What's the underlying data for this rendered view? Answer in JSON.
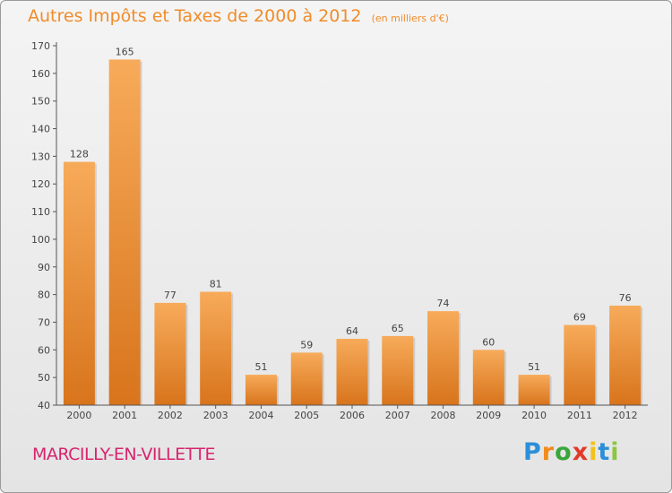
{
  "header": {
    "title": "Autres Impôts et Taxes de 2000 à 2012",
    "unit": "(en milliers d'€)"
  },
  "footer": {
    "commune": "MARCILLY-EN-VILLETTE",
    "brand_letters": [
      "P",
      "r",
      "o",
      "x",
      "i",
      "t",
      "i"
    ],
    "brand_colors": [
      "#2a8fd8",
      "#f28a1c",
      "#3aa63a",
      "#e23a2a",
      "#f2c21c",
      "#2a8fd8",
      "#8dc63f"
    ]
  },
  "colors": {
    "accent": "#f08c2a",
    "commune": "#d6246e",
    "bar_top": "#f7ab5a",
    "bar_bottom": "#d8741c"
  },
  "chart_data": {
    "type": "bar",
    "title": "Autres Impôts et Taxes de 2000 à 2012",
    "subtitle": "(en milliers d'€)",
    "xlabel": "",
    "ylabel": "",
    "categories": [
      "2000",
      "2001",
      "2002",
      "2003",
      "2004",
      "2005",
      "2006",
      "2007",
      "2008",
      "2009",
      "2010",
      "2011",
      "2012"
    ],
    "values": [
      128,
      165,
      77,
      81,
      51,
      59,
      64,
      65,
      74,
      60,
      51,
      69,
      76
    ],
    "ylim": [
      40,
      170
    ],
    "yticks": [
      40,
      50,
      60,
      70,
      80,
      90,
      100,
      110,
      120,
      130,
      140,
      150,
      160,
      170
    ],
    "data_labels": true,
    "grid": false,
    "legend": "none"
  }
}
